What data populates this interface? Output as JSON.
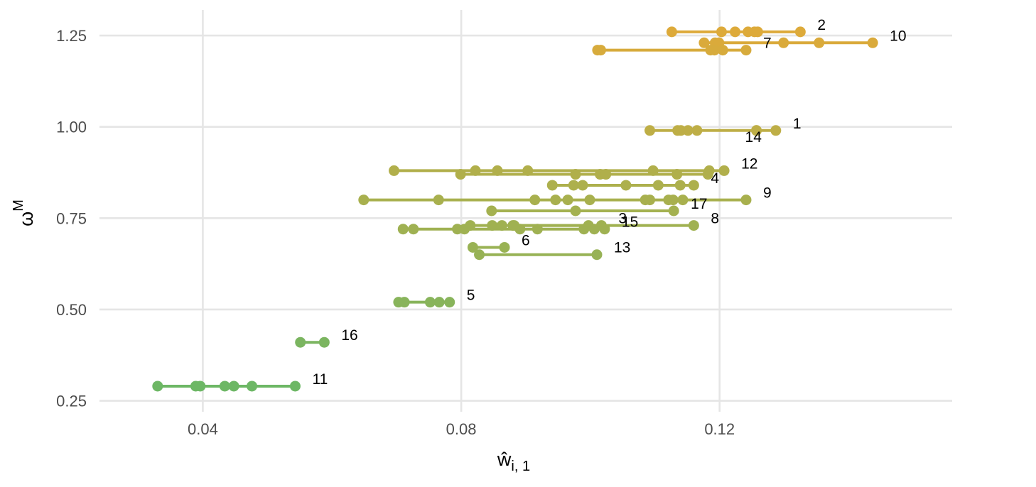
{
  "chart_data": {
    "type": "scatter",
    "title": "",
    "xlabel": "ŵ",
    "xlabel_subscript": "i, 1",
    "ylabel": "ω",
    "ylabel_superscript": "M",
    "xlim": [
      0.024,
      0.156
    ],
    "ylim": [
      0.22,
      1.32
    ],
    "xticks": [
      0.04,
      0.08,
      0.12
    ],
    "xtick_labels": [
      "0.04",
      "0.08",
      "0.12"
    ],
    "yticks": [
      0.25,
      0.5,
      0.75,
      1.0,
      1.25
    ],
    "ytick_labels": [
      "0.25",
      "0.50",
      "0.75",
      "1.00",
      "1.25"
    ],
    "grid": true,
    "legend": "none",
    "color_gradient": {
      "low": "#6db765",
      "high": "#ddaa3a",
      "low_y": 0.29,
      "high_y": 1.26
    },
    "series": [
      {
        "label": "2",
        "y": 1.26,
        "x": [
          0.1126,
          0.1203,
          0.1224,
          0.1244,
          0.1254,
          0.1259,
          0.1325
        ]
      },
      {
        "label": "10",
        "y": 1.23,
        "x": [
          0.1176,
          0.1193,
          0.1199,
          0.1299,
          0.1354,
          0.1437
        ]
      },
      {
        "label": "7",
        "y": 1.21,
        "x": [
          0.1011,
          0.1016,
          0.1186,
          0.1192,
          0.1205,
          0.1241
        ]
      },
      {
        "label": "1",
        "y": 0.99,
        "x": [
          0.1092,
          0.1135,
          0.114,
          0.1151,
          0.1165,
          0.1257,
          0.1287
        ]
      },
      {
        "label": "14",
        "y": 0.99,
        "x": [
          0.1257
        ],
        "label_offset": "below-right"
      },
      {
        "label": "12",
        "y": 0.88,
        "x": [
          0.0696,
          0.0822,
          0.0856,
          0.0903,
          0.1097,
          0.1184,
          0.1207
        ]
      },
      {
        "label": "",
        "y": 0.87,
        "x": [
          0.0799,
          0.0977,
          0.1015,
          0.1024,
          0.1134,
          0.1182
        ]
      },
      {
        "label": "4",
        "y": 0.84,
        "x": [
          0.0941,
          0.0974,
          0.0988,
          0.1055,
          0.1105,
          0.1139,
          0.116
        ]
      },
      {
        "label": "9",
        "y": 0.8,
        "x": [
          0.0649,
          0.0765,
          0.0914,
          0.0946,
          0.0965,
          0.0999,
          0.1085,
          0.1092,
          0.1121,
          0.1128,
          0.1143,
          0.1241
        ]
      },
      {
        "label": "17",
        "y": 0.77,
        "x": [
          0.0847,
          0.0977,
          0.1129
        ]
      },
      {
        "label": "3",
        "y": 0.73,
        "x": [
          0.0814,
          0.0848,
          0.0863,
          0.088,
          0.0997,
          0.1017
        ]
      },
      {
        "label": "15",
        "y": 0.72,
        "x": [
          0.071,
          0.0726,
          0.0794,
          0.0805,
          0.0891,
          0.0918,
          0.099,
          0.1006,
          0.1022
        ]
      },
      {
        "label": "8",
        "y": 0.73,
        "x": [
          0.0882,
          0.116
        ]
      },
      {
        "label": "6",
        "y": 0.67,
        "x": [
          0.0818,
          0.0867
        ]
      },
      {
        "label": "13",
        "y": 0.65,
        "x": [
          0.0828,
          0.101
        ]
      },
      {
        "label": "5",
        "y": 0.52,
        "x": [
          0.0703,
          0.0712,
          0.0752,
          0.0766,
          0.0782
        ]
      },
      {
        "label": "16",
        "y": 0.41,
        "x": [
          0.0551,
          0.0588
        ]
      },
      {
        "label": "11",
        "y": 0.29,
        "x": [
          0.033,
          0.0389,
          0.0396,
          0.0434,
          0.0448,
          0.0476,
          0.0543
        ]
      }
    ]
  }
}
